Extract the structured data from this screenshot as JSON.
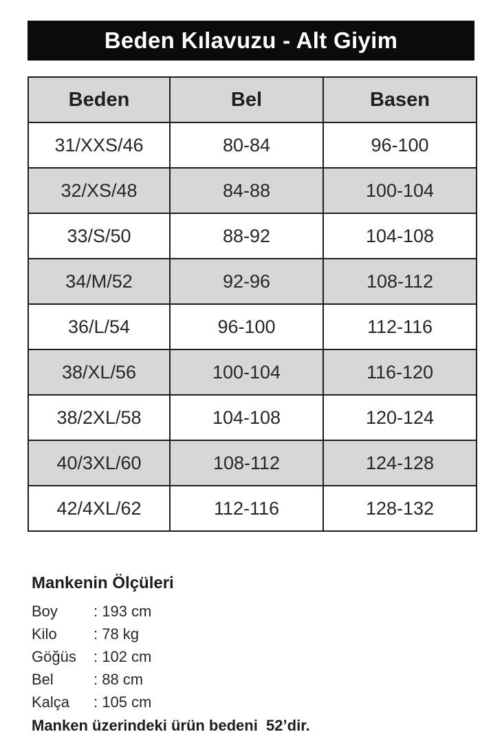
{
  "title": "Beden Kılavuzu - Alt Giyim",
  "table": {
    "headers": [
      "Beden",
      "Bel",
      "Basen"
    ],
    "rows": [
      [
        "31/XXS/46",
        "80-84",
        "96-100"
      ],
      [
        "32/XS/48",
        "84-88",
        "100-104"
      ],
      [
        "33/S/50",
        "88-92",
        "104-108"
      ],
      [
        "34/M/52",
        "92-96",
        "108-112"
      ],
      [
        "36/L/54",
        "96-100",
        "112-116"
      ],
      [
        "38/XL/56",
        "100-104",
        "116-120"
      ],
      [
        "38/2XL/58",
        "104-108",
        "120-124"
      ],
      [
        "40/3XL/60",
        "108-112",
        "124-128"
      ],
      [
        "42/4XL/62",
        "112-116",
        "128-132"
      ]
    ]
  },
  "measurements": {
    "heading": "Mankenin Ölçüleri",
    "items": [
      {
        "label": "Boy",
        "value": ": 193 cm"
      },
      {
        "label": "Kilo",
        "value": ": 78 kg"
      },
      {
        "label": "Göğüs",
        "value": ": 102 cm"
      },
      {
        "label": "Bel",
        "value": ": 88 cm"
      },
      {
        "label": "Kalça",
        "value": ": 105 cm"
      }
    ],
    "note": "Manken üzerindeki ürün bedeni  52’dir."
  },
  "colors": {
    "banner_bg": "#0b0b0b",
    "banner_text": "#ffffff",
    "row_alt_bg": "#d7d7d7",
    "table_border": "#1c1c1c",
    "text": "#262626"
  }
}
